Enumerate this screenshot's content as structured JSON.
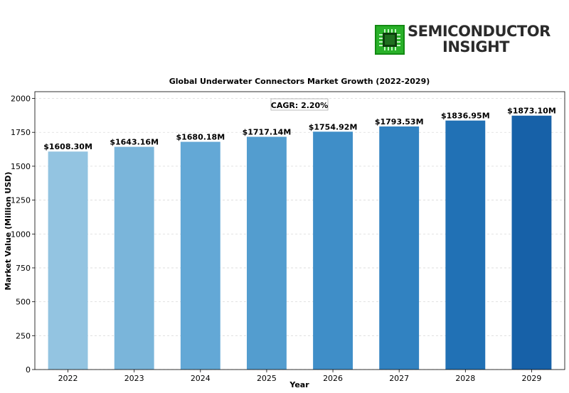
{
  "logo": {
    "line1": "SEMICONDUCTOR",
    "line2": "INSIGHT"
  },
  "chart_data": {
    "type": "bar",
    "title": "Global Underwater Connectors Market Growth (2022-2029)",
    "xlabel": "Year",
    "ylabel": "Market Value (Million USD)",
    "categories": [
      "2022",
      "2023",
      "2024",
      "2025",
      "2026",
      "2027",
      "2028",
      "2029"
    ],
    "values": [
      1608.3,
      1643.16,
      1680.18,
      1717.14,
      1754.92,
      1793.53,
      1836.95,
      1873.1
    ],
    "value_labels": [
      "$1608.30M",
      "$1643.16M",
      "$1680.18M",
      "$1717.14M",
      "$1754.92M",
      "$1793.53M",
      "$1836.95M",
      "$1873.10M"
    ],
    "ylim": [
      0,
      2050
    ],
    "yticks": [
      0,
      250,
      500,
      750,
      1000,
      1250,
      1500,
      1750,
      2000
    ],
    "annotation": "CAGR: 2.20%",
    "grid": "horizontal dashed",
    "colors": [
      "#93c4e1",
      "#7ab5da",
      "#63a8d6",
      "#539dcf",
      "#3f8ec8",
      "#3182c1",
      "#2171b5",
      "#1761a8"
    ]
  }
}
